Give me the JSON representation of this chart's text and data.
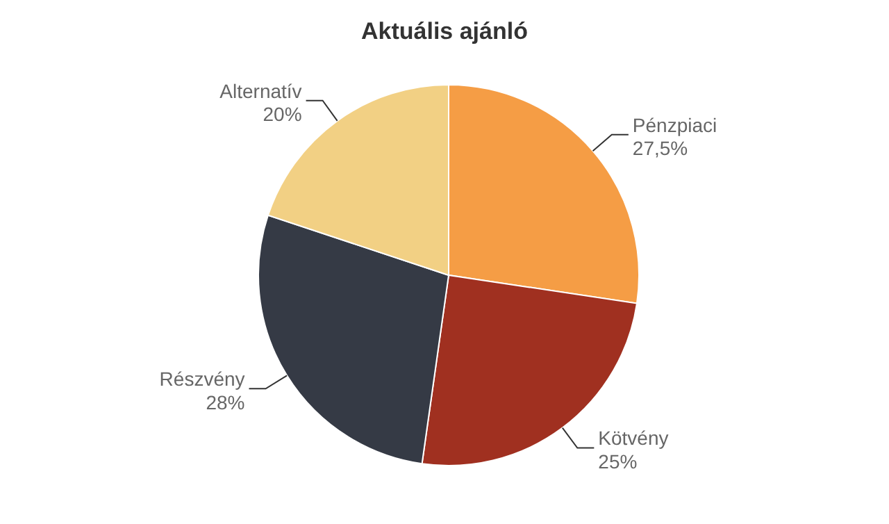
{
  "chart_data": {
    "type": "pie",
    "title": "Aktuális ajánló",
    "categories": [
      "Pénzpiaci",
      "Kötvény",
      "Részvény",
      "Alternatív"
    ],
    "values": [
      27.5,
      25,
      28,
      20
    ],
    "value_labels": [
      "27,5%",
      "25%",
      "28%",
      "20%"
    ],
    "colors": [
      "#f59d45",
      "#a03020",
      "#353a45",
      "#f2d084"
    ],
    "legend": false
  }
}
